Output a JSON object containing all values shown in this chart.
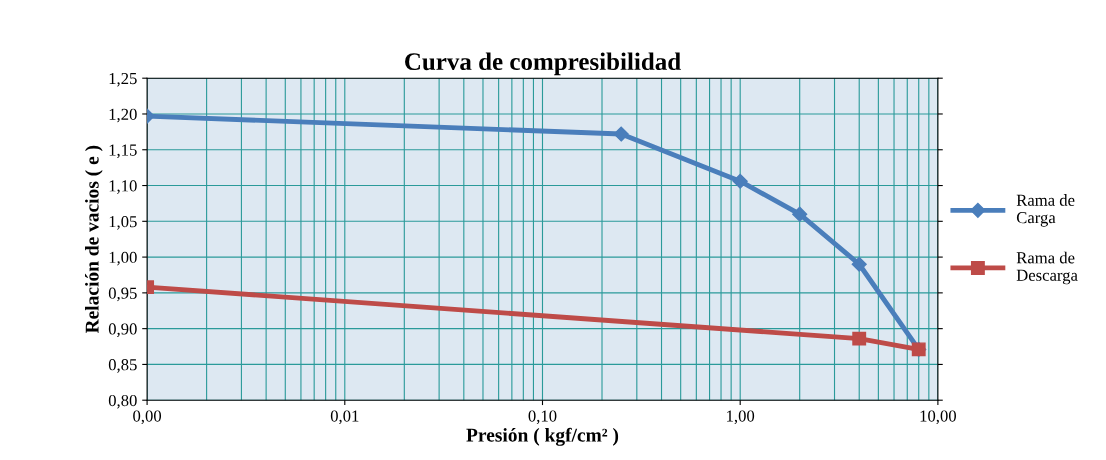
{
  "chart_data": {
    "type": "line",
    "title": "Curva de compresibilidad",
    "xlabel": "Presión ( kgf/cm² )",
    "ylabel": "Relación de vacios ( e )",
    "log": "x",
    "grid": true,
    "legend": "right",
    "xlim": [
      0.001,
      10
    ],
    "xticks": [
      {
        "value": 0.001,
        "label": "0,00"
      },
      {
        "value": 0.01,
        "label": "0,01"
      },
      {
        "value": 0.1,
        "label": "0,10"
      },
      {
        "value": 1,
        "label": "1,00"
      },
      {
        "value": 10,
        "label": "10,00"
      }
    ],
    "ylim": [
      0.8,
      1.25
    ],
    "yticks": [
      {
        "value": 0.8,
        "label": "0,80"
      },
      {
        "value": 0.85,
        "label": "0,85"
      },
      {
        "value": 0.9,
        "label": "0,90"
      },
      {
        "value": 0.95,
        "label": "0,95"
      },
      {
        "value": 1.0,
        "label": "1,00"
      },
      {
        "value": 1.05,
        "label": "1,05"
      },
      {
        "value": 1.1,
        "label": "1,10"
      },
      {
        "value": 1.15,
        "label": "1,15"
      },
      {
        "value": 1.2,
        "label": "1,20"
      },
      {
        "value": 1.25,
        "label": "1,25"
      }
    ],
    "series": [
      {
        "name": "Rama de\nCarga",
        "color": "#4a7ebb",
        "marker": "diamond",
        "x": [
          0.001,
          0.25,
          1,
          2,
          4,
          8
        ],
        "values": [
          1.197,
          1.172,
          1.106,
          1.06,
          0.99,
          0.871
        ]
      },
      {
        "name": "Rama de\nDescarga",
        "color": "#be4b48",
        "marker": "square",
        "x": [
          0.001,
          4,
          8
        ],
        "values": [
          0.958,
          0.886,
          0.871
        ]
      }
    ]
  }
}
